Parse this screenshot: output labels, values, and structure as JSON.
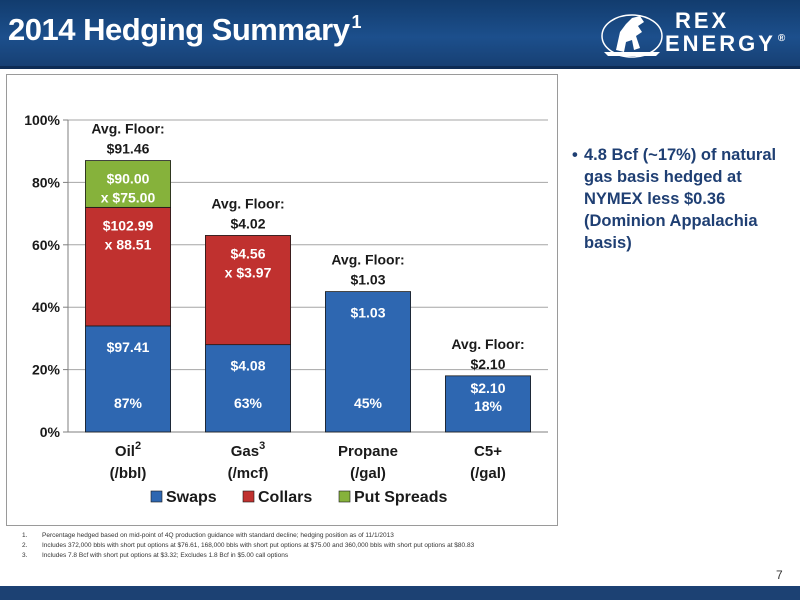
{
  "header": {
    "title": "2014 Hedging Summary",
    "title_sup": "1",
    "logo_line1": "REX",
    "logo_line2": "ENERGY",
    "logo_mark": "®"
  },
  "chart_data": {
    "type": "bar",
    "stacked": true,
    "categories": [
      {
        "line1": "Oil",
        "sup": "2",
        "line2": "(/bbl)"
      },
      {
        "line1": "Gas",
        "sup": "3",
        "line2": "(/mcf)"
      },
      {
        "line1": "Propane",
        "sup": "",
        "line2": "(/gal)"
      },
      {
        "line1": "C5+",
        "sup": "",
        "line2": "(/gal)"
      }
    ],
    "series": [
      {
        "name": "Swaps",
        "color": "#2e67b1",
        "values": [
          34,
          28,
          45,
          18
        ],
        "labels": [
          [
            "$97.41"
          ],
          [
            "$4.08"
          ],
          [
            "$1.03"
          ],
          [
            "$2.10"
          ]
        ]
      },
      {
        "name": "Collars",
        "color": "#c0312f",
        "values": [
          38,
          35,
          0,
          0
        ],
        "labels": [
          [
            "$102.99",
            "x 88.51"
          ],
          [
            "$4.56",
            "x $3.97"
          ],
          [],
          []
        ]
      },
      {
        "name": "Put Spreads",
        "color": "#86b23b",
        "values": [
          15,
          0,
          0,
          0
        ],
        "labels": [
          [
            "$90.00",
            "x $75.00"
          ],
          [],
          [],
          []
        ]
      }
    ],
    "totals": [
      87,
      63,
      45,
      18
    ],
    "total_labels": [
      "87%",
      "63%",
      "45%",
      "18%"
    ],
    "avg_floor_title": "Avg. Floor:",
    "avg_floor_values": [
      "$91.46",
      "$4.02",
      "$1.03",
      "$2.10"
    ],
    "yticks": [
      "0%",
      "20%",
      "40%",
      "60%",
      "80%",
      "100%"
    ],
    "ylim": [
      0,
      100
    ],
    "grid": true,
    "legend": "bottom"
  },
  "bullet": {
    "text": "4.8 Bcf (~17%) of natural gas basis hedged at NYMEX less $0.36 (Dominion Appalachia basis)"
  },
  "footnotes": [
    {
      "num": "1.",
      "text": "Percentage hedged based on mid-point of 4Q production guidance with standard decline; hedging position as of 11/1/2013"
    },
    {
      "num": "2.",
      "text": "Includes 372,000 bbls with short put options at $76.61, 168,000 bbls with short put options at $75.00 and 360,000 bbls with short put options at $80.83"
    },
    {
      "num": "3.",
      "text": "Includes 7.8 Bcf with short put options at $3.32; Excludes 1.8 Bcf in $5.00 call options"
    }
  ],
  "page_number": "7"
}
